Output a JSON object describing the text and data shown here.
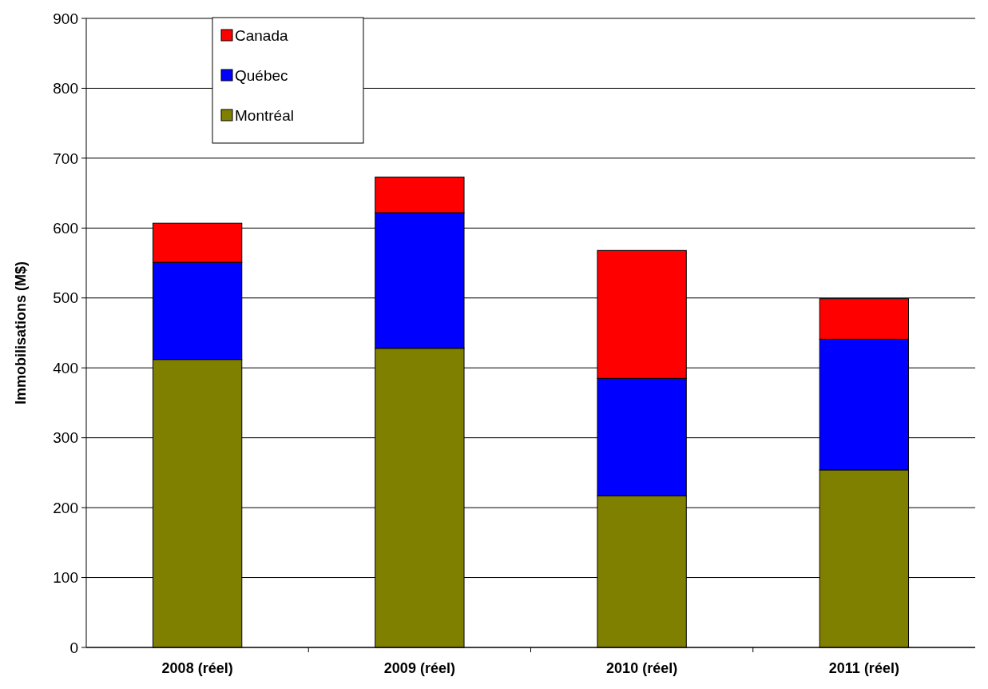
{
  "chart_data": {
    "type": "bar",
    "stacked": true,
    "ylabel": "Immobilisations (M$)",
    "categories": [
      "2008 (réel)",
      "2009 (réel)",
      "2010 (réel)",
      "2011 (réel)"
    ],
    "series": [
      {
        "name": "Montréal",
        "color": "#808000",
        "values": [
          412,
          428,
          217,
          254
        ]
      },
      {
        "name": "Québec",
        "color": "#0000ff",
        "values": [
          139,
          194,
          168,
          187
        ]
      },
      {
        "name": "Canada",
        "color": "#ff0000",
        "values": [
          56,
          51,
          183,
          58
        ]
      }
    ],
    "ylim": [
      0,
      900
    ],
    "yticks": [
      0,
      100,
      200,
      300,
      400,
      500,
      600,
      700,
      800,
      900
    ],
    "grid": "y",
    "legend": "top left"
  }
}
